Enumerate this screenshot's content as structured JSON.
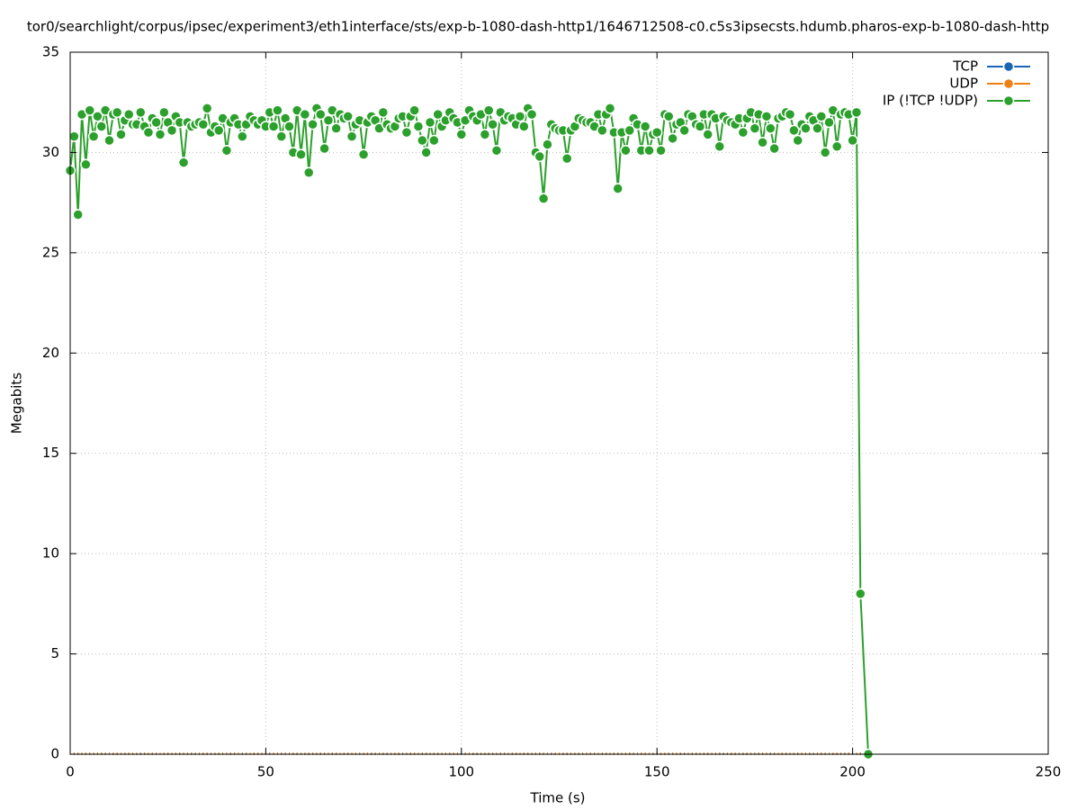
{
  "chart_data": {
    "type": "line",
    "title": "tor0/searchlight/corpus/ipsec/experiment3/eth1interface/sts/exp-b-1080-dash-http1/1646712508-c0.c5s3ipsecsts.hdumb.pharos-exp-b-1080-dash-http",
    "xlabel": "Time (s)",
    "ylabel": "Megabits",
    "xlim": [
      0,
      250
    ],
    "xticks": [
      0,
      50,
      100,
      150,
      200,
      250
    ],
    "ylim": [
      0,
      35
    ],
    "yticks": [
      0,
      5,
      10,
      15,
      20,
      25,
      30,
      35
    ],
    "grid": true,
    "legend": "top-right",
    "x": [
      0,
      1,
      2,
      3,
      4,
      5,
      6,
      7,
      8,
      9,
      10,
      11,
      12,
      13,
      14,
      15,
      16,
      17,
      18,
      19,
      20,
      21,
      22,
      23,
      24,
      25,
      26,
      27,
      28,
      29,
      30,
      31,
      32,
      33,
      34,
      35,
      36,
      37,
      38,
      39,
      40,
      41,
      42,
      43,
      44,
      45,
      46,
      47,
      48,
      49,
      50,
      51,
      52,
      53,
      54,
      55,
      56,
      57,
      58,
      59,
      60,
      61,
      62,
      63,
      64,
      65,
      66,
      67,
      68,
      69,
      70,
      71,
      72,
      73,
      74,
      75,
      76,
      77,
      78,
      79,
      80,
      81,
      82,
      83,
      84,
      85,
      86,
      87,
      88,
      89,
      90,
      91,
      92,
      93,
      94,
      95,
      96,
      97,
      98,
      99,
      100,
      101,
      102,
      103,
      104,
      105,
      106,
      107,
      108,
      109,
      110,
      111,
      112,
      113,
      114,
      115,
      116,
      117,
      118,
      119,
      120,
      121,
      122,
      123,
      124,
      125,
      126,
      127,
      128,
      129,
      130,
      131,
      132,
      133,
      134,
      135,
      136,
      137,
      138,
      139,
      140,
      141,
      142,
      143,
      144,
      145,
      146,
      147,
      148,
      149,
      150,
      151,
      152,
      153,
      154,
      155,
      156,
      157,
      158,
      159,
      160,
      161,
      162,
      163,
      164,
      165,
      166,
      167,
      168,
      169,
      170,
      171,
      172,
      173,
      174,
      175,
      176,
      177,
      178,
      179,
      180,
      181,
      182,
      183,
      184,
      185,
      186,
      187,
      188,
      189,
      190,
      191,
      192,
      193,
      194,
      195,
      196,
      197,
      198,
      199,
      200,
      201,
      202,
      204
    ],
    "series": [
      {
        "name": "TCP",
        "color": "#1a64b4",
        "values": [
          0,
          0,
          0,
          0,
          0,
          0,
          0,
          0,
          0,
          0,
          0,
          0,
          0,
          0,
          0,
          0,
          0,
          0,
          0,
          0,
          0,
          0,
          0,
          0,
          0,
          0,
          0,
          0,
          0,
          0,
          0,
          0,
          0,
          0,
          0,
          0,
          0,
          0,
          0,
          0,
          0,
          0,
          0,
          0,
          0,
          0,
          0,
          0,
          0,
          0,
          0,
          0,
          0,
          0,
          0,
          0,
          0,
          0,
          0,
          0,
          0,
          0,
          0,
          0,
          0,
          0,
          0,
          0,
          0,
          0,
          0,
          0,
          0,
          0,
          0,
          0,
          0,
          0,
          0,
          0,
          0,
          0,
          0,
          0,
          0,
          0,
          0,
          0,
          0,
          0,
          0,
          0,
          0,
          0,
          0,
          0,
          0,
          0,
          0,
          0,
          0,
          0,
          0,
          0,
          0,
          0,
          0,
          0,
          0,
          0,
          0,
          0,
          0,
          0,
          0,
          0,
          0,
          0,
          0,
          0,
          0,
          0,
          0,
          0,
          0,
          0,
          0,
          0,
          0,
          0,
          0,
          0,
          0,
          0,
          0,
          0,
          0,
          0,
          0,
          0,
          0,
          0,
          0,
          0,
          0,
          0,
          0,
          0,
          0,
          0,
          0,
          0,
          0,
          0,
          0,
          0,
          0,
          0,
          0,
          0,
          0,
          0,
          0,
          0,
          0,
          0,
          0,
          0,
          0,
          0,
          0,
          0,
          0,
          0,
          0,
          0,
          0,
          0,
          0,
          0,
          0,
          0,
          0,
          0,
          0,
          0,
          0,
          0,
          0,
          0,
          0,
          0,
          0,
          0,
          0,
          0,
          0,
          0,
          0,
          0,
          0,
          0,
          0,
          0
        ]
      },
      {
        "name": "UDP",
        "color": "#f07f12",
        "values": [
          0,
          0,
          0,
          0,
          0,
          0,
          0,
          0,
          0,
          0,
          0,
          0,
          0,
          0,
          0,
          0,
          0,
          0,
          0,
          0,
          0,
          0,
          0,
          0,
          0,
          0,
          0,
          0,
          0,
          0,
          0,
          0,
          0,
          0,
          0,
          0,
          0,
          0,
          0,
          0,
          0,
          0,
          0,
          0,
          0,
          0,
          0,
          0,
          0,
          0,
          0,
          0,
          0,
          0,
          0,
          0,
          0,
          0,
          0,
          0,
          0,
          0,
          0,
          0,
          0,
          0,
          0,
          0,
          0,
          0,
          0,
          0,
          0,
          0,
          0,
          0,
          0,
          0,
          0,
          0,
          0,
          0,
          0,
          0,
          0,
          0,
          0,
          0,
          0,
          0,
          0,
          0,
          0,
          0,
          0,
          0,
          0,
          0,
          0,
          0,
          0,
          0,
          0,
          0,
          0,
          0,
          0,
          0,
          0,
          0,
          0,
          0,
          0,
          0,
          0,
          0,
          0,
          0,
          0,
          0,
          0,
          0,
          0,
          0,
          0,
          0,
          0,
          0,
          0,
          0,
          0,
          0,
          0,
          0,
          0,
          0,
          0,
          0,
          0,
          0,
          0,
          0,
          0,
          0,
          0,
          0,
          0,
          0,
          0,
          0,
          0,
          0,
          0,
          0,
          0,
          0,
          0,
          0,
          0,
          0,
          0,
          0,
          0,
          0,
          0,
          0,
          0,
          0,
          0,
          0,
          0,
          0,
          0,
          0,
          0,
          0,
          0,
          0,
          0,
          0,
          0,
          0,
          0,
          0,
          0,
          0,
          0,
          0,
          0,
          0,
          0,
          0,
          0,
          0,
          0,
          0,
          0,
          0,
          0,
          0,
          0,
          0,
          0,
          0
        ]
      },
      {
        "name": "IP (!TCP  !UDP)",
        "color": "#2ca02c",
        "values": [
          29.1,
          30.8,
          26.9,
          31.9,
          29.4,
          32.1,
          30.8,
          31.8,
          31.3,
          32.1,
          30.6,
          31.9,
          32.0,
          30.9,
          31.6,
          31.9,
          31.4,
          31.4,
          32.0,
          31.3,
          31.0,
          31.7,
          31.5,
          30.9,
          32.0,
          31.5,
          31.1,
          31.8,
          31.5,
          29.5,
          31.5,
          31.3,
          31.4,
          31.5,
          31.4,
          32.2,
          31.0,
          31.3,
          31.1,
          31.7,
          30.1,
          31.5,
          31.7,
          31.4,
          30.8,
          31.4,
          31.8,
          31.6,
          31.4,
          31.6,
          31.3,
          32.0,
          31.3,
          32.1,
          30.8,
          31.7,
          31.3,
          30.0,
          32.1,
          29.9,
          31.9,
          29.0,
          31.4,
          32.2,
          31.9,
          30.2,
          31.6,
          32.1,
          31.2,
          31.9,
          31.7,
          31.8,
          30.8,
          31.4,
          31.6,
          29.9,
          31.5,
          31.8,
          31.6,
          31.2,
          32.0,
          31.4,
          31.2,
          31.3,
          31.7,
          31.8,
          31.0,
          31.8,
          32.1,
          31.3,
          30.6,
          30.0,
          31.5,
          30.6,
          31.9,
          31.3,
          31.6,
          32.0,
          31.7,
          31.5,
          30.9,
          31.6,
          32.1,
          31.8,
          31.6,
          31.9,
          30.9,
          32.1,
          31.4,
          30.1,
          32.0,
          31.6,
          31.8,
          31.7,
          31.4,
          31.8,
          31.3,
          32.2,
          31.9,
          30.0,
          29.8,
          27.7,
          30.4,
          31.4,
          31.2,
          31.1,
          31.1,
          29.7,
          31.1,
          31.3,
          31.7,
          31.6,
          31.5,
          31.5,
          31.3,
          31.9,
          31.1,
          31.9,
          32.2,
          31.0,
          28.2,
          31.0,
          30.1,
          31.1,
          31.7,
          31.4,
          30.1,
          31.3,
          30.1,
          30.9,
          31.0,
          30.1,
          31.9,
          31.8,
          30.7,
          31.4,
          31.5,
          31.1,
          31.9,
          31.8,
          31.4,
          31.3,
          31.9,
          30.9,
          31.9,
          31.7,
          30.3,
          31.8,
          31.6,
          31.5,
          31.4,
          31.7,
          31.0,
          31.7,
          32.0,
          31.2,
          31.9,
          30.5,
          31.8,
          31.2,
          30.2,
          31.7,
          31.8,
          32.0,
          31.9,
          31.1,
          30.6,
          31.4,
          31.2,
          31.8,
          31.6,
          31.2,
          31.8,
          30.0,
          31.5,
          32.1,
          30.3,
          31.9,
          32.0,
          31.9,
          30.6,
          32.0,
          8.0,
          0
        ]
      }
    ]
  }
}
